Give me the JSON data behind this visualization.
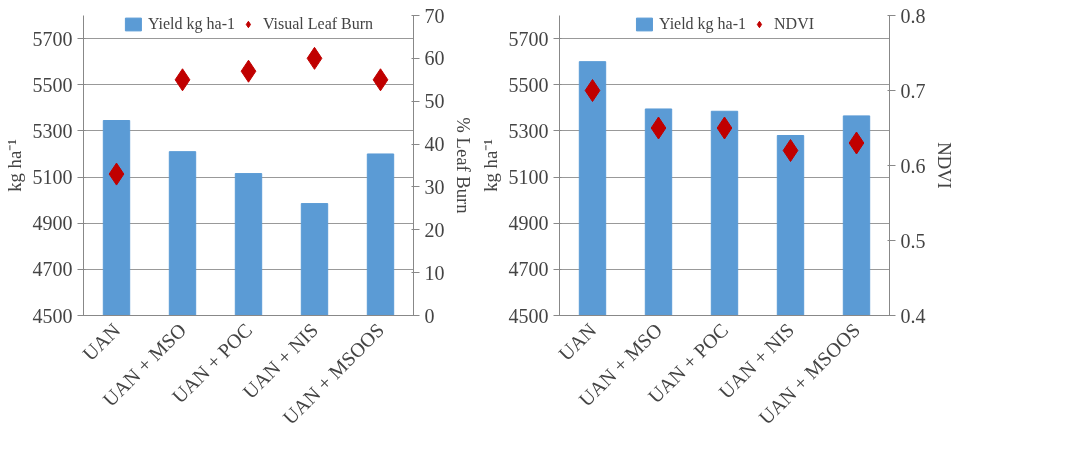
{
  "chart_data": [
    {
      "type": "bar",
      "categories": [
        "UAN",
        "UAN + MSO",
        "UAN + POC",
        "UAN + NIS",
        "UAN + MSOOS"
      ],
      "ylabel": "kg ha⁻¹",
      "y2label": "% Leaf Burn",
      "ylim": [
        4500,
        5800
      ],
      "yticks": [
        4500,
        4700,
        4900,
        5100,
        5300,
        5500,
        5700
      ],
      "y2lim": [
        0,
        70
      ],
      "y2ticks": [
        0,
        10,
        20,
        30,
        40,
        50,
        60,
        70
      ],
      "grid": "y",
      "legend": "top",
      "marker": "diamond",
      "series": [
        {
          "name": "Yield kg ha-1",
          "color": "#5b9bd5",
          "values": [
            5345,
            5210,
            5115,
            4985,
            5200
          ]
        },
        {
          "name": "Visual Leaf Burn",
          "type": "scatter",
          "axis": "y2",
          "color": "#c00000",
          "values": [
            33,
            55,
            57,
            60,
            55
          ]
        }
      ]
    },
    {
      "type": "bar",
      "categories": [
        "UAN",
        "UAN + MSO",
        "UAN + POC",
        "UAN + NIS",
        "UAN + MSOOS"
      ],
      "ylabel": "kg ha⁻¹",
      "y2label": "NDVI",
      "ylim": [
        4500,
        5800
      ],
      "yticks": [
        4500,
        4700,
        4900,
        5100,
        5300,
        5500,
        5700
      ],
      "y2lim": [
        0.4,
        0.8
      ],
      "y2ticks": [
        0.4,
        0.5,
        0.6,
        0.7,
        0.8
      ],
      "grid": "y",
      "legend": "top",
      "marker": "diamond",
      "series": [
        {
          "name": "Yield kg ha-1",
          "color": "#5b9bd5",
          "values": [
            5600,
            5395,
            5385,
            5280,
            5365
          ]
        },
        {
          "name": "NDVI",
          "type": "scatter",
          "axis": "y2",
          "color": "#c00000",
          "values": [
            0.7,
            0.65,
            0.65,
            0.62,
            0.63
          ]
        }
      ]
    }
  ]
}
